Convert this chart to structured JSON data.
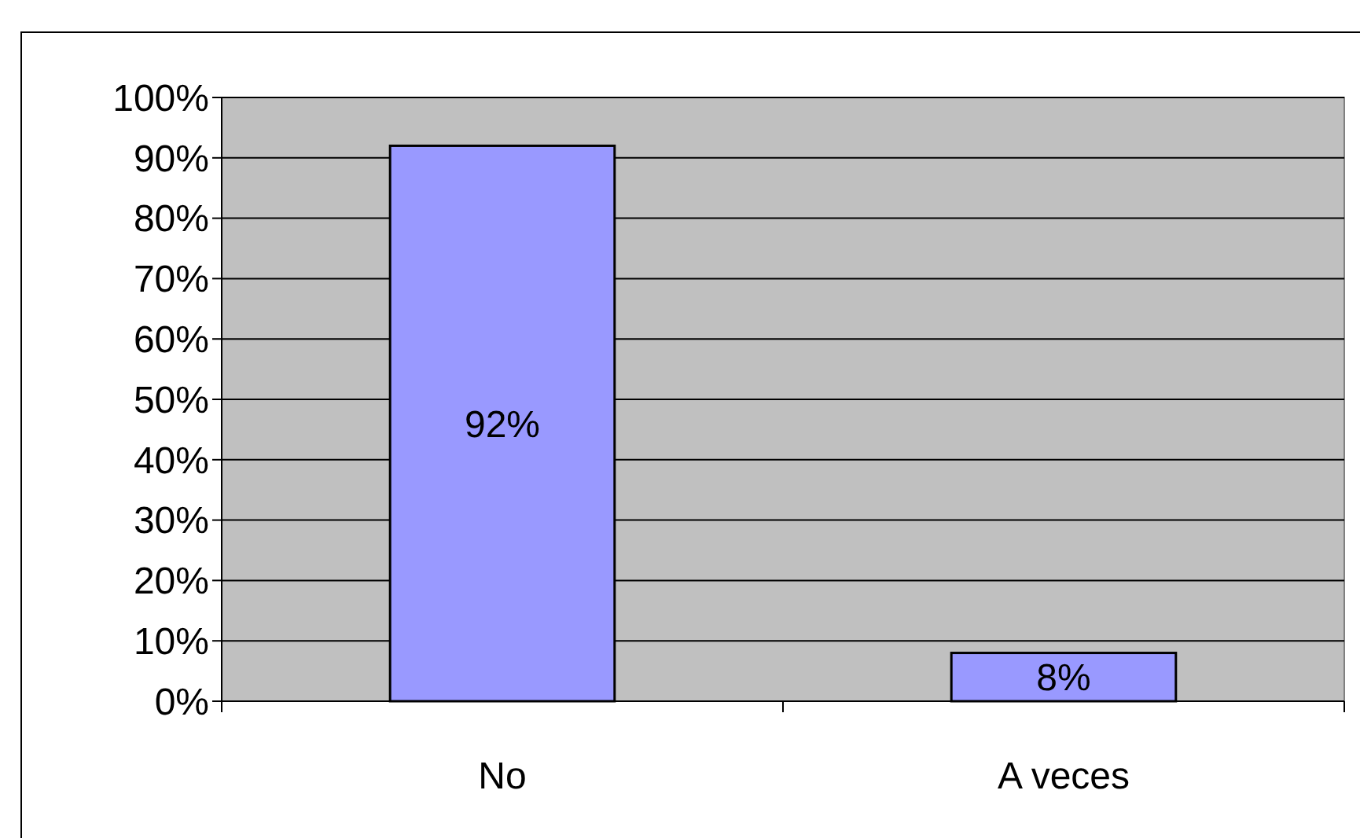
{
  "chart_data": {
    "type": "bar",
    "categories": [
      "No",
      "A veces"
    ],
    "values": [
      92,
      8
    ],
    "color": "#9999ff",
    "value_labels": [
      "92%",
      "8%"
    ],
    "ylim": [
      0,
      100
    ],
    "yticks": [
      {
        "value": 0,
        "label": "0%"
      },
      {
        "value": 10,
        "label": "10%"
      },
      {
        "value": 20,
        "label": "20%"
      },
      {
        "value": 30,
        "label": "30%"
      },
      {
        "value": 40,
        "label": "40%"
      },
      {
        "value": 50,
        "label": "50%"
      },
      {
        "value": 60,
        "label": "60%"
      },
      {
        "value": 70,
        "label": "70%"
      },
      {
        "value": 80,
        "label": "80%"
      },
      {
        "value": 90,
        "label": "90%"
      },
      {
        "value": 100,
        "label": "100%"
      }
    ],
    "grid": "y"
  }
}
